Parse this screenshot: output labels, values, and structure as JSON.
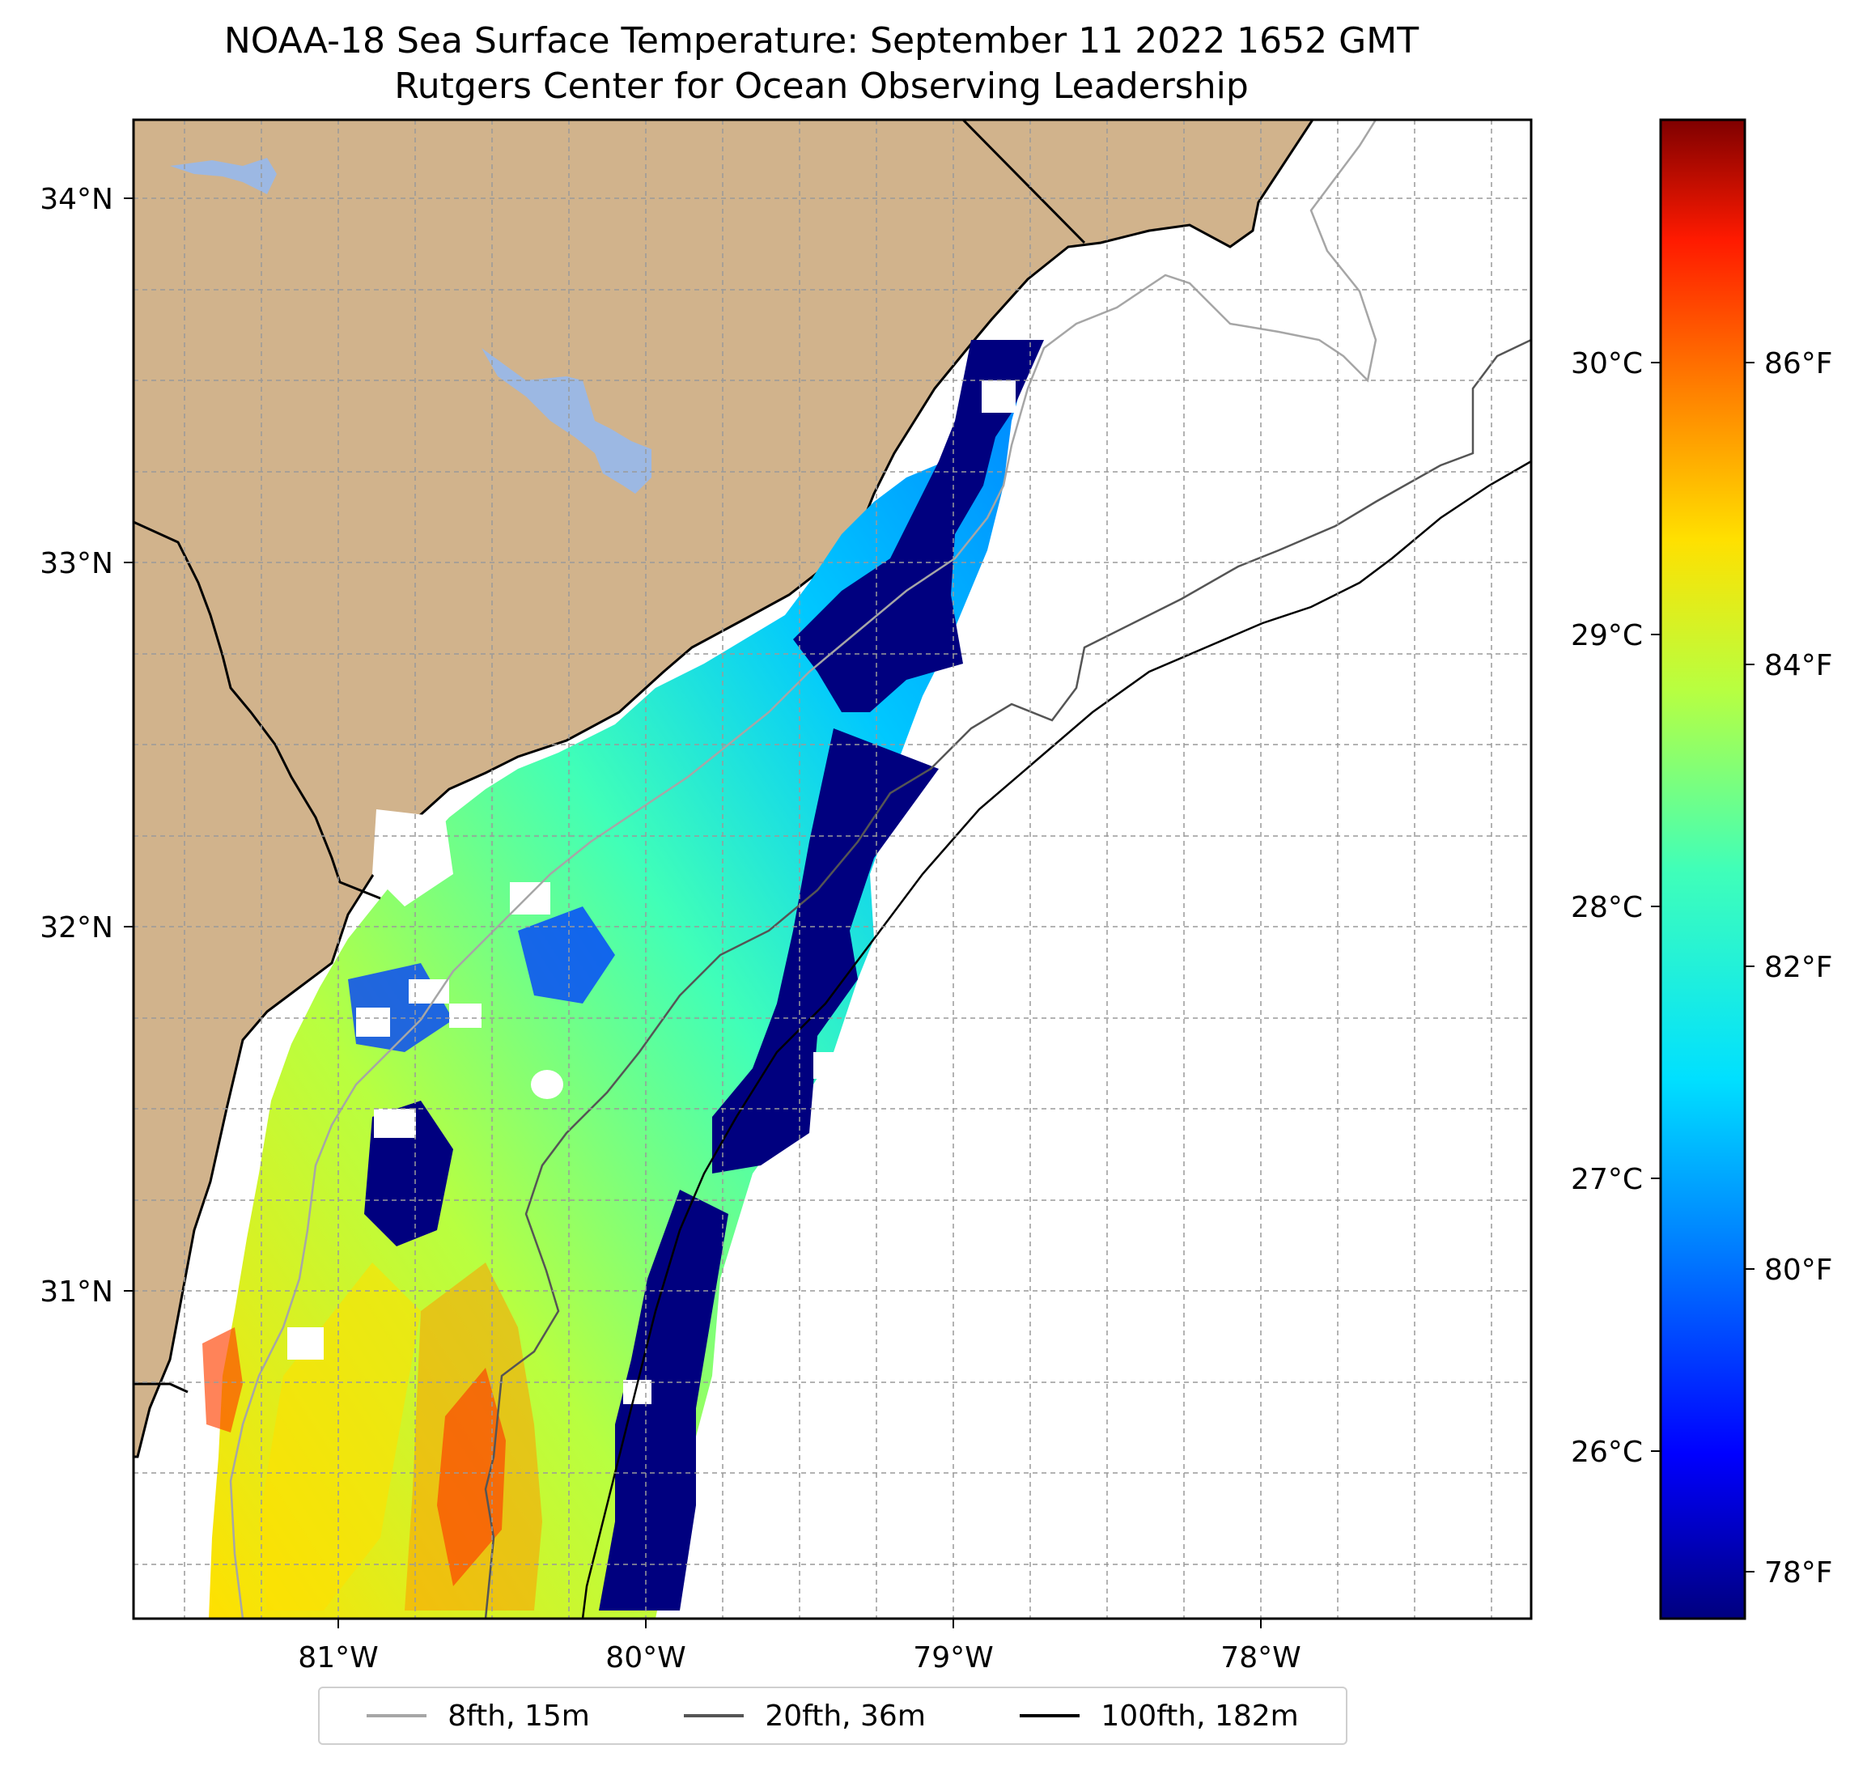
{
  "title": {
    "line1": "NOAA-18 Sea Surface Temperature: September 11 2022 1652 GMT",
    "line2": "Rutgers Center for Ocean Observing Leadership"
  },
  "axes": {
    "x_labels": [
      "81°W",
      "80°W",
      "79°W",
      "78°W"
    ],
    "y_labels": [
      "34°N",
      "33°N",
      "32°N",
      "31°N"
    ]
  },
  "colorbar": {
    "celsius_labels": [
      "30°C",
      "29°C",
      "28°C",
      "27°C",
      "26°C"
    ],
    "fahrenheit_labels": [
      "86°F",
      "84°F",
      "82°F",
      "80°F",
      "78°F"
    ],
    "colors": [
      "#00007f",
      "#0000ff",
      "#0080ff",
      "#00e0ff",
      "#40ffb8",
      "#b8ff40",
      "#ffe000",
      "#ff8000",
      "#ff1a00",
      "#7f0000"
    ]
  },
  "legend": {
    "items": [
      {
        "label": "8fth, 15m",
        "color": "#a6a6a6"
      },
      {
        "label": "20fth, 36m",
        "color": "#555555"
      },
      {
        "label": "100fth, 182m",
        "color": "#000000"
      }
    ]
  },
  "map_colors": {
    "land": "#d1b38c",
    "lake": "#9cb8e3",
    "ocean": "#ffffff"
  },
  "chart_data": {
    "type": "heatmap",
    "title": "NOAA-18 Sea Surface Temperature: September 11 2022 1652 GMT",
    "subtitle": "Rutgers Center for Ocean Observing Leadership",
    "x_range_lon": [
      -81.68,
      -77.12
    ],
    "y_range_lat": [
      30.1,
      34.22
    ],
    "xticks": [
      -81,
      -80,
      -79,
      -78
    ],
    "yticks": [
      34,
      33,
      32,
      31
    ],
    "colorbar_range_c": [
      25.4,
      31.1
    ],
    "colorbar_ticks_c": [
      30,
      29,
      28,
      27,
      26
    ],
    "colorbar_ticks_f": [
      86,
      84,
      82,
      80,
      78
    ],
    "legend": [
      "8fth, 15m",
      "20fth, 36m",
      "100fth, 182m"
    ],
    "legend_position": "bottom-center",
    "grid": true
  }
}
